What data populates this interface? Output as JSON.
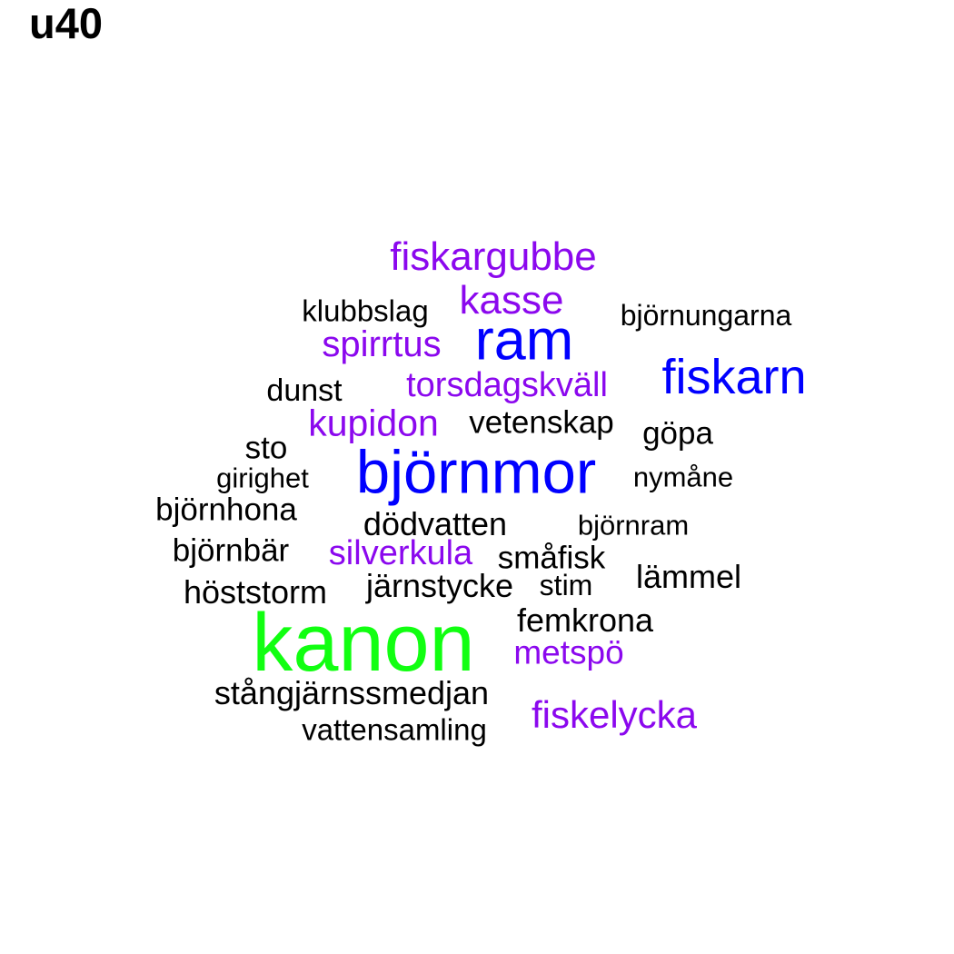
{
  "title": "u40",
  "colors": {
    "black": "#000000",
    "purple": "#8b08ee",
    "blue": "#0000ff",
    "green": "#11ff11"
  },
  "words": [
    {
      "text": "kanon",
      "color": "green"
    },
    {
      "text": "björnmor",
      "color": "blue"
    },
    {
      "text": "ram",
      "color": "blue"
    },
    {
      "text": "fiskarn",
      "color": "blue"
    },
    {
      "text": "fiskargubbe",
      "color": "purple"
    },
    {
      "text": "kasse",
      "color": "purple"
    },
    {
      "text": "spirrtus",
      "color": "purple"
    },
    {
      "text": "torsdagskväll",
      "color": "purple"
    },
    {
      "text": "kupidon",
      "color": "purple"
    },
    {
      "text": "silverkula",
      "color": "purple"
    },
    {
      "text": "metspö",
      "color": "purple"
    },
    {
      "text": "fiskelycka",
      "color": "purple"
    },
    {
      "text": "klubbslag",
      "color": "black"
    },
    {
      "text": "björnungarna",
      "color": "black"
    },
    {
      "text": "dunst",
      "color": "black"
    },
    {
      "text": "vetenskap",
      "color": "black"
    },
    {
      "text": "göpa",
      "color": "black"
    },
    {
      "text": "sto",
      "color": "black"
    },
    {
      "text": "girighet",
      "color": "black"
    },
    {
      "text": "nymåne",
      "color": "black"
    },
    {
      "text": "björnhona",
      "color": "black"
    },
    {
      "text": "dödvatten",
      "color": "black"
    },
    {
      "text": "björnram",
      "color": "black"
    },
    {
      "text": "björnbär",
      "color": "black"
    },
    {
      "text": "småfisk",
      "color": "black"
    },
    {
      "text": "lämmel",
      "color": "black"
    },
    {
      "text": "höststorm",
      "color": "black"
    },
    {
      "text": "järnstycke",
      "color": "black"
    },
    {
      "text": "stim",
      "color": "black"
    },
    {
      "text": "femkrona",
      "color": "black"
    },
    {
      "text": "stångjärnssmedjan",
      "color": "black"
    },
    {
      "text": "vattensamling",
      "color": "black"
    }
  ]
}
